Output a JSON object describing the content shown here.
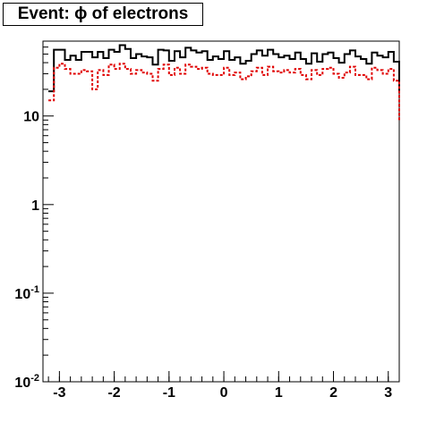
{
  "chart_data": {
    "type": "line",
    "title": "Event: ϕ of electrons",
    "xlabel": "",
    "ylabel": "",
    "xlim": [
      -3.3,
      3.2
    ],
    "ylim": [
      0.01,
      70
    ],
    "y_scale": "log",
    "grid": false,
    "x_ticks": [
      "-3",
      "-2",
      "-1",
      "0",
      "1",
      "2",
      "3"
    ],
    "x_tick_values": [
      -3,
      -2,
      -1,
      0,
      1,
      2,
      3
    ],
    "y_ticks": [
      {
        "base": "10",
        "exp": "-2",
        "value": 0.01
      },
      {
        "base": "10",
        "exp": "-1",
        "value": 0.1
      },
      {
        "base": "1",
        "exp": "",
        "value": 1
      },
      {
        "base": "10",
        "exp": "",
        "value": 10
      }
    ],
    "bin_edges_start": -3.2,
    "bin_width": 0.1,
    "series": [
      {
        "style": "solid",
        "color": "#000000",
        "values": [
          19,
          56,
          56,
          43,
          48,
          43,
          53,
          53,
          46,
          53,
          45,
          56,
          53,
          63,
          57,
          45,
          50,
          47,
          46,
          38,
          56,
          55,
          42,
          54,
          46,
          59,
          55,
          52,
          54,
          43,
          47,
          44,
          54,
          43,
          46,
          39,
          42,
          50,
          55,
          48,
          56,
          50,
          46,
          48,
          44,
          52,
          44,
          39,
          51,
          41,
          50,
          52,
          45,
          40,
          50,
          55,
          47,
          44,
          39,
          52,
          48,
          46,
          53,
          41,
          18
        ]
      },
      {
        "style": "dashed",
        "color": "#e00000",
        "values": [
          15,
          35,
          39,
          34,
          30,
          30,
          33,
          32,
          20,
          33,
          29,
          38,
          34,
          39,
          34,
          30,
          33,
          31,
          30,
          25,
          34,
          38,
          29,
          35,
          30,
          38,
          36,
          34,
          35,
          30,
          29,
          29,
          35,
          29,
          31,
          26,
          28,
          32,
          35,
          29,
          36,
          32,
          31,
          33,
          31,
          34,
          29,
          26,
          33,
          29,
          34,
          35,
          30,
          27,
          31,
          36,
          29,
          29,
          26,
          35,
          33,
          30,
          34,
          25,
          9
        ]
      }
    ]
  }
}
